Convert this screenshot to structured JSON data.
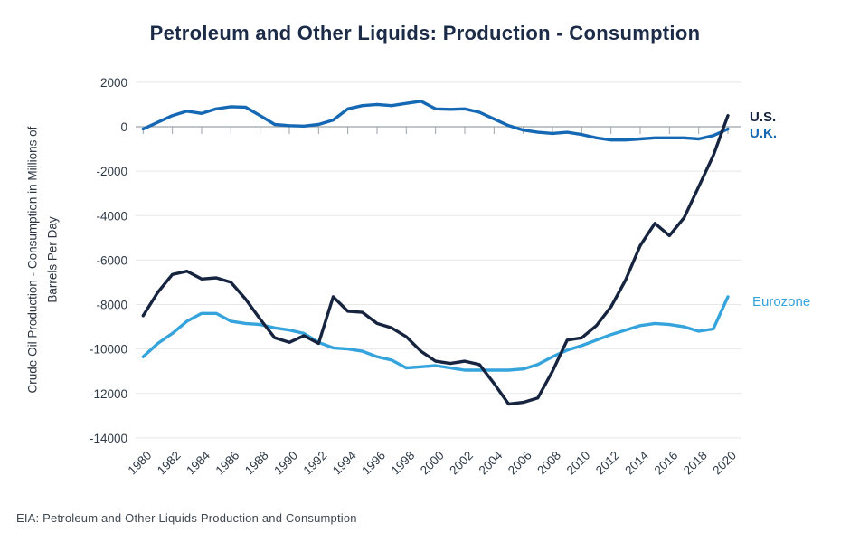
{
  "header": {
    "title": "Petroleum and Other Liquids: Production - Consumption"
  },
  "y_axis": {
    "label_line1": "Crude Oil Production - Consumption in Millions of",
    "label_line2": "Barrels Per Day"
  },
  "footer": {
    "source": "EIA: Petroleum and Other Liquids Production and Consumption"
  },
  "colors": {
    "title": "#1c2b47",
    "us_line": "#162440",
    "uk_line": "#1568b3",
    "eurozone_line": "#35a3dc",
    "gridline": "#e8e8e8",
    "axis": "#9aa2a9",
    "tick_text": "#2f3a47"
  },
  "chart_data": {
    "type": "line",
    "title": "Petroleum and Other Liquids: Production - Consumption",
    "ylabel": "Crude Oil Production - Consumption in Millions of Barrels Per Day",
    "xlabel": "",
    "x": [
      1980,
      1981,
      1982,
      1983,
      1984,
      1985,
      1986,
      1987,
      1988,
      1989,
      1990,
      1991,
      1992,
      1993,
      1994,
      1995,
      1996,
      1997,
      1998,
      1999,
      2000,
      2001,
      2002,
      2003,
      2004,
      2005,
      2006,
      2007,
      2008,
      2009,
      2010,
      2011,
      2012,
      2013,
      2014,
      2015,
      2016,
      2017,
      2018,
      2019,
      2020
    ],
    "xticks": [
      1980,
      1982,
      1984,
      1986,
      1988,
      1990,
      1992,
      1994,
      1996,
      1998,
      2000,
      2002,
      2004,
      2006,
      2008,
      2010,
      2012,
      2014,
      2016,
      2018,
      2020
    ],
    "yticks": [
      2000,
      0,
      -2000,
      -4000,
      -6000,
      -8000,
      -10000,
      -12000,
      -14000
    ],
    "ylim": [
      -14000,
      2000
    ],
    "grid": true,
    "legend_position": "right-of-line-ends",
    "series": [
      {
        "name": "Eurozone",
        "color": "#35a3dc",
        "values": [
          -10350,
          -9750,
          -9300,
          -8750,
          -8400,
          -8400,
          -8750,
          -8850,
          -8900,
          -9050,
          -9150,
          -9300,
          -9700,
          -9950,
          -10000,
          -10100,
          -10350,
          -10500,
          -10850,
          -10800,
          -10750,
          -10850,
          -10950,
          -10950,
          -10950,
          -10950,
          -10900,
          -10700,
          -10350,
          -10050,
          -9850,
          -9600,
          -9350,
          -9150,
          -8950,
          -8850,
          -8900,
          -9000,
          -9200,
          -9100,
          -7650
        ]
      },
      {
        "name": "U.K.",
        "color": "#1568b3",
        "values": [
          -100,
          200,
          500,
          700,
          600,
          800,
          900,
          880,
          500,
          100,
          50,
          30,
          100,
          300,
          800,
          950,
          1000,
          950,
          1050,
          1150,
          800,
          780,
          800,
          650,
          350,
          50,
          -150,
          -250,
          -300,
          -250,
          -350,
          -500,
          -600,
          -600,
          -550,
          -500,
          -500,
          -500,
          -550,
          -400,
          -100
        ]
      },
      {
        "name": "U.S.",
        "color": "#162440",
        "values": [
          -8500,
          -7450,
          -6650,
          -6500,
          -6850,
          -6800,
          -7000,
          -7750,
          -8650,
          -9500,
          -9700,
          -9400,
          -9750,
          -7650,
          -8300,
          -8350,
          -8850,
          -9050,
          -9450,
          -10100,
          -10550,
          -10650,
          -10550,
          -10700,
          -11550,
          -12480,
          -12400,
          -12200,
          -11000,
          -9600,
          -9500,
          -8950,
          -8100,
          -6900,
          -5350,
          -4350,
          -4900,
          -4100,
          -2700,
          -1300,
          500
        ]
      }
    ]
  }
}
